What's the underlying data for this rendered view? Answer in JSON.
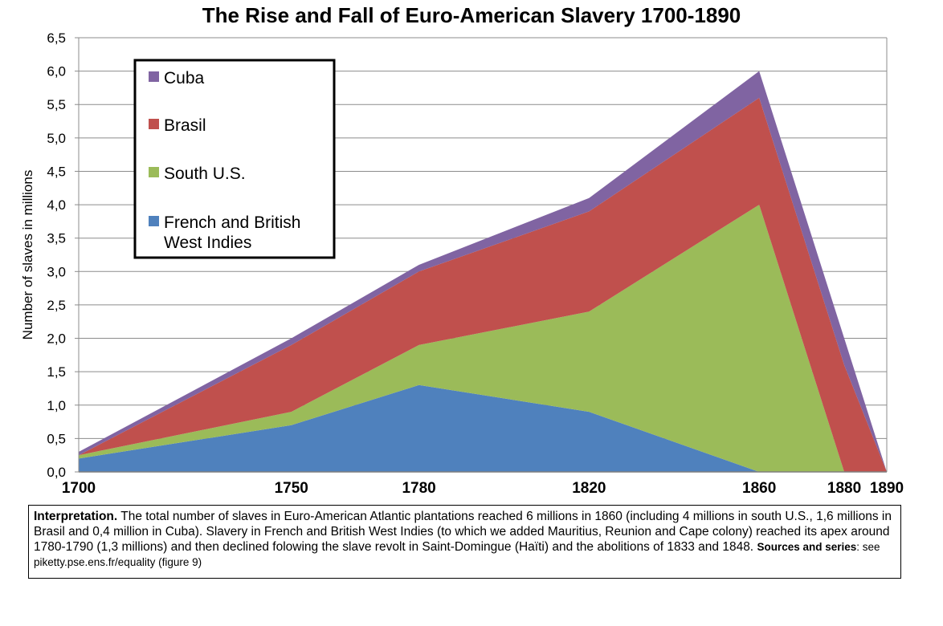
{
  "chart_data": {
    "type": "area",
    "stacked": true,
    "title": "The Rise and Fall of Euro-American Slavery 1700-1890",
    "ylabel": "Number of slaves in millions",
    "xlabel": "",
    "x": [
      1700,
      1750,
      1780,
      1820,
      1860,
      1880,
      1890
    ],
    "ylim": [
      0,
      6.5
    ],
    "yticks": [
      "0,0",
      "0,5",
      "1,0",
      "1,5",
      "2,0",
      "2,5",
      "3,0",
      "3,5",
      "4,0",
      "4,5",
      "5,0",
      "5,5",
      "6,0",
      "6,5"
    ],
    "xticks": [
      "1700",
      "1750",
      "1780",
      "1820",
      "1860",
      "1880",
      "1890"
    ],
    "grid": true,
    "legend_position": "top-left",
    "series": [
      {
        "name": "French and British West Indies",
        "color": "#4F81BD",
        "values": [
          0.2,
          0.7,
          1.3,
          0.9,
          0.0,
          0.0,
          0.0
        ]
      },
      {
        "name": "South U.S.",
        "color": "#9BBB59",
        "values": [
          0.05,
          0.2,
          0.6,
          1.5,
          4.0,
          0.0,
          0.0
        ]
      },
      {
        "name": "Brasil",
        "color": "#C0504D",
        "values": [
          0.0,
          1.0,
          1.1,
          1.5,
          1.6,
          1.6,
          0.0
        ]
      },
      {
        "name": "Cuba",
        "color": "#8064A2",
        "values": [
          0.05,
          0.1,
          0.1,
          0.2,
          0.4,
          0.4,
          0.0
        ]
      }
    ]
  },
  "legend_lines": {
    "cuba": [
      "Cuba"
    ],
    "brasil": [
      "Brasil"
    ],
    "south": [
      "South U.S."
    ],
    "wi": [
      "French and British",
      "West Indies"
    ]
  },
  "note": {
    "lead": "Interpretation.",
    "text": " The total number of slaves in Euro-American Atlantic plantations reached 6 millions in 1860 (including 4 millions in south U.S., 1,6 millions in Brasil and 0,4 million in Cuba). Slavery in French and British West Indies (to which we added Mauritius, Reunion and Cape colony) reached its apex around 1780-1790 (1,3 millions) and then declined folowing the slave revolt in Saint-Domingue (Haïti) and the abolitions of 1833 and 1848.   ",
    "sources_label": "Sources and series",
    "sources_text": ": see piketty.pse.ens.fr/equality (figure 9)"
  }
}
